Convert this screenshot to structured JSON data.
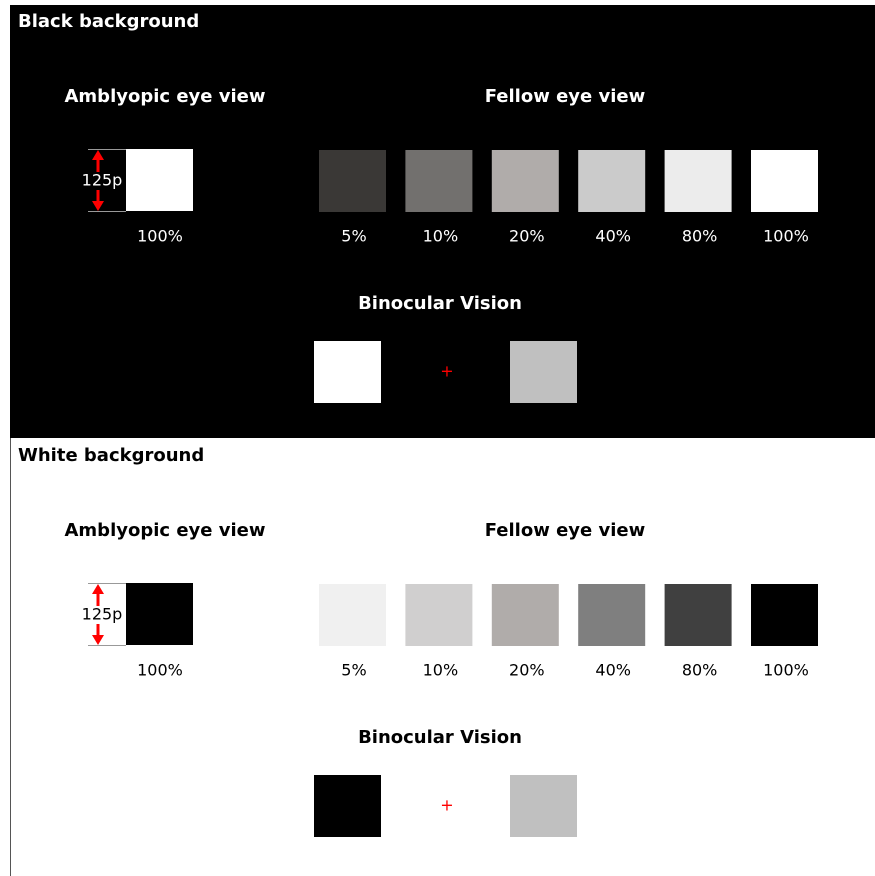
{
  "panels": [
    {
      "title": "Black background",
      "amblyopic_label": "Amblyopic eye view",
      "fellow_label": "Fellow eye view",
      "size_label": "125p",
      "amblyopic_level": "100%",
      "fellow_levels": [
        "5%",
        "10%",
        "20%",
        "40%",
        "80%",
        "100%"
      ],
      "binocular_label": "Binocular Vision",
      "plus": "+"
    },
    {
      "title": "White background",
      "amblyopic_label": "Amblyopic eye view",
      "fellow_label": "Fellow eye view",
      "size_label": "125p",
      "amblyopic_level": "100%",
      "fellow_levels": [
        "5%",
        "10%",
        "20%",
        "40%",
        "80%",
        "100%"
      ],
      "binocular_label": "Binocular Vision",
      "plus": "+"
    }
  ]
}
